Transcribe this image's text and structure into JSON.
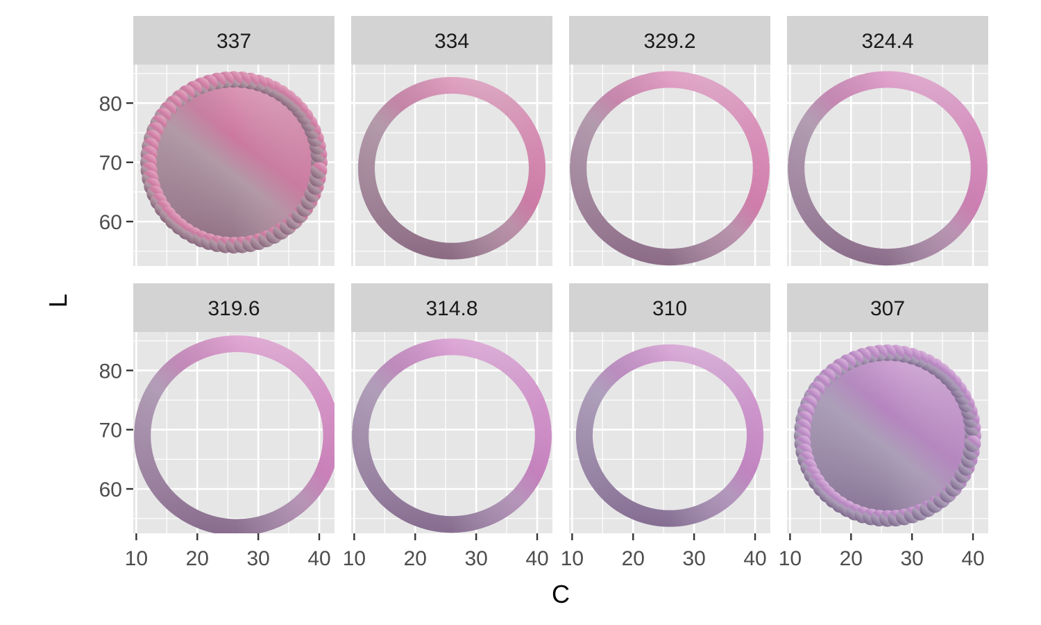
{
  "chart_data": {
    "type": "scatter",
    "xlabel": "C",
    "ylabel": "L",
    "xlim": [
      9.5,
      42.5
    ],
    "ylim": [
      52.5,
      86.5
    ],
    "x_ticks": [
      10,
      20,
      30,
      40
    ],
    "y_ticks": [
      60,
      70,
      80
    ],
    "grid": true,
    "legend": "none",
    "panel_background": "#e6e6e6",
    "strip_background": "#d3d3d3",
    "grid_color": "#ffffff",
    "panels": [
      {
        "label": "337",
        "fill": "disk",
        "center_C": 26,
        "center_L": 70,
        "radius": 14,
        "color_top": "#e8b0c8",
        "color_right": "#cc78a0",
        "color_left": "#b29aa6",
        "color_bottom": "#7f5b73"
      },
      {
        "label": "334",
        "fill": "ring",
        "center_C": 26,
        "center_L": 69,
        "radius": 14,
        "color_top": "#e8b3cd",
        "color_right": "#cc7aa5",
        "color_left": "#b39aaa",
        "color_bottom": "#7d5a75"
      },
      {
        "label": "329.2",
        "fill": "ring",
        "center_C": 26,
        "center_L": 69,
        "radius": 15,
        "color_top": "#ebb4d4",
        "color_right": "#cf7caa",
        "color_left": "#b39bae",
        "color_bottom": "#7d5a78"
      },
      {
        "label": "324.4",
        "fill": "ring",
        "center_C": 26,
        "center_L": 69,
        "radius": 15,
        "color_top": "#ebb6d9",
        "color_right": "#cc7db1",
        "color_left": "#b29db2",
        "color_bottom": "#7c5b7b"
      },
      {
        "label": "319.6",
        "fill": "ring",
        "center_C": 26.5,
        "center_L": 69,
        "radius": 15.5,
        "color_top": "#ebb8df",
        "color_right": "#c97fb8",
        "color_left": "#b19db6",
        "color_bottom": "#7a5b7e"
      },
      {
        "label": "314.8",
        "fill": "ring",
        "center_C": 26,
        "center_L": 69,
        "radius": 15,
        "color_top": "#e8bae2",
        "color_right": "#c580bd",
        "color_left": "#b09eb9",
        "color_bottom": "#785c81"
      },
      {
        "label": "310",
        "fill": "ring",
        "center_C": 26,
        "center_L": 69,
        "radius": 14,
        "color_top": "#e5bce2",
        "color_right": "#c183c0",
        "color_left": "#ae9fbb",
        "color_bottom": "#765c83"
      },
      {
        "label": "307",
        "fill": "disk",
        "center_C": 26,
        "center_L": 69,
        "radius": 14,
        "color_top": "#e3bee3",
        "color_right": "#b684c0",
        "color_left": "#ac9fb8",
        "color_bottom": "#765e85"
      }
    ]
  }
}
